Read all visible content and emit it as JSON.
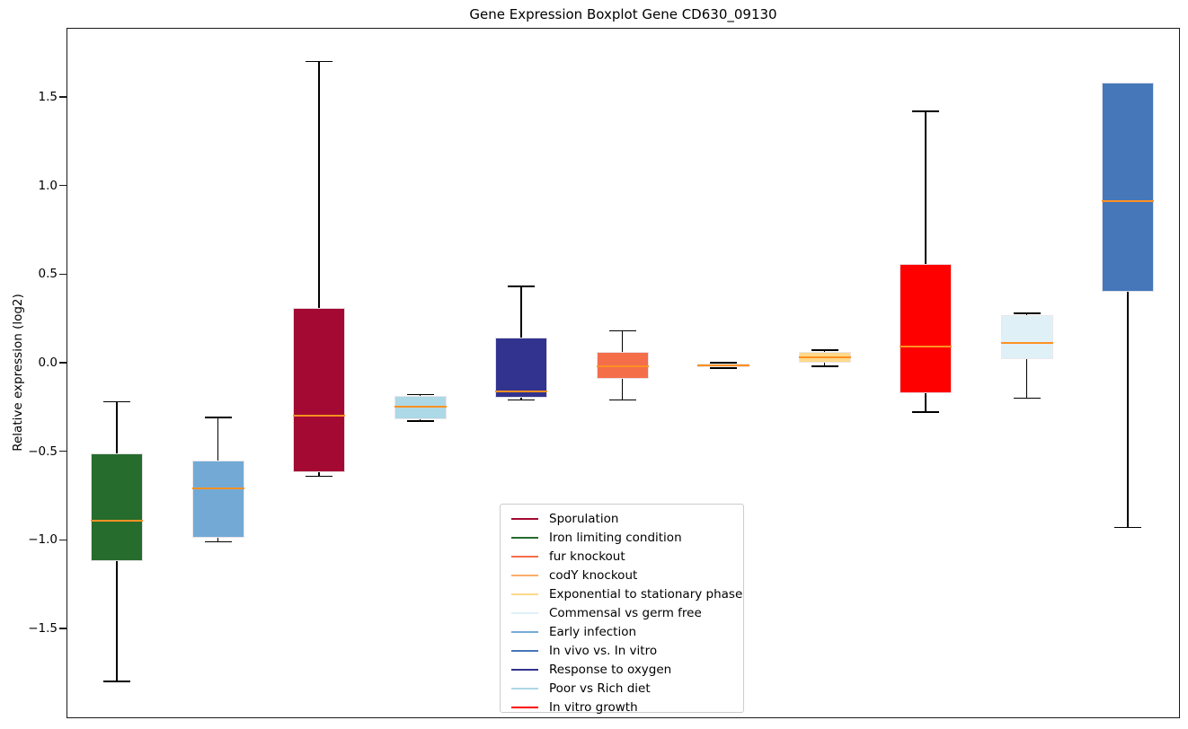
{
  "chart_data": {
    "type": "boxplot",
    "title": "Gene Expression Boxplot Gene CD630_09130",
    "ylabel": "Relative expression (log2)",
    "xlabel": "",
    "ylim": [
      -2.01,
      1.89
    ],
    "grid": false,
    "legend_position": "lower center",
    "median_color": "#ff9123",
    "whisker_color": "#000000",
    "yticks": [
      1.5,
      1.0,
      0.5,
      0.0,
      -0.5,
      -1.0,
      -1.5
    ],
    "ytick_labels": [
      "1.5",
      "1.0",
      "0.5",
      "0.0",
      "−0.5",
      "−1.0",
      "−1.5"
    ],
    "boxes": [
      {
        "label": "Iron limiting condition",
        "color": "#256C2D",
        "whislo": -1.8,
        "q1": -1.12,
        "med": -0.89,
        "q3": -0.51,
        "whishi": -0.22
      },
      {
        "label": "Early infection",
        "color": "#73AAD5",
        "whislo": -1.01,
        "q1": -0.99,
        "med": -0.71,
        "q3": -0.55,
        "whishi": -0.31
      },
      {
        "label": "Sporulation",
        "color": "#A30932",
        "whislo": -0.64,
        "q1": -0.62,
        "med": -0.3,
        "q3": 0.31,
        "whishi": 1.7
      },
      {
        "label": "Poor vs Rich diet",
        "color": "#ADD8E6",
        "whislo": -0.33,
        "q1": -0.32,
        "med": -0.25,
        "q3": -0.19,
        "whishi": -0.18
      },
      {
        "label": "Response to oxygen",
        "color": "#32338E",
        "whislo": -0.21,
        "q1": -0.2,
        "med": -0.16,
        "q3": 0.14,
        "whishi": 0.43
      },
      {
        "label": "fur knockout",
        "color": "#F46E4A",
        "whislo": -0.21,
        "q1": -0.09,
        "med": -0.02,
        "q3": 0.06,
        "whishi": 0.18
      },
      {
        "label": "codY knockout",
        "color": "#FDAE6B",
        "whislo": -0.03,
        "q1": -0.025,
        "med": -0.013,
        "q3": -0.003,
        "whishi": 0.0
      },
      {
        "label": "Exponential to stationary phase",
        "color": "#FDD98A",
        "whislo": -0.02,
        "q1": 0.0,
        "med": 0.03,
        "q3": 0.06,
        "whishi": 0.07
      },
      {
        "label": "In vitro growth",
        "color": "#FE0000",
        "whislo": -0.28,
        "q1": -0.17,
        "med": 0.09,
        "q3": 0.56,
        "whishi": 1.42
      },
      {
        "label": "Commensal vs germ free",
        "color": "#DFF0F7",
        "whislo": -0.2,
        "q1": 0.02,
        "med": 0.11,
        "q3": 0.27,
        "whishi": 0.28
      },
      {
        "label": "In vivo vs. In vitro",
        "color": "#4577B9",
        "whislo": -0.93,
        "q1": 0.4,
        "med": 0.91,
        "q3": 1.58,
        "whishi": 1.58
      }
    ],
    "legend": [
      {
        "label": "Sporulation",
        "color": "#A30932"
      },
      {
        "label": "Iron limiting condition",
        "color": "#256C2D"
      },
      {
        "label": "fur knockout",
        "color": "#F46E4A"
      },
      {
        "label": "codY knockout",
        "color": "#FDAE6B"
      },
      {
        "label": "Exponential to stationary phase",
        "color": "#FDD98A"
      },
      {
        "label": "Commensal vs germ free",
        "color": "#DFF0F7"
      },
      {
        "label": "Early infection",
        "color": "#73AAD5"
      },
      {
        "label": "In vivo vs. In vitro",
        "color": "#4577B9"
      },
      {
        "label": "Response to oxygen",
        "color": "#32338E"
      },
      {
        "label": "Poor vs Rich diet",
        "color": "#ADD8E6"
      },
      {
        "label": "In vitro growth",
        "color": "#FE0000"
      }
    ]
  }
}
